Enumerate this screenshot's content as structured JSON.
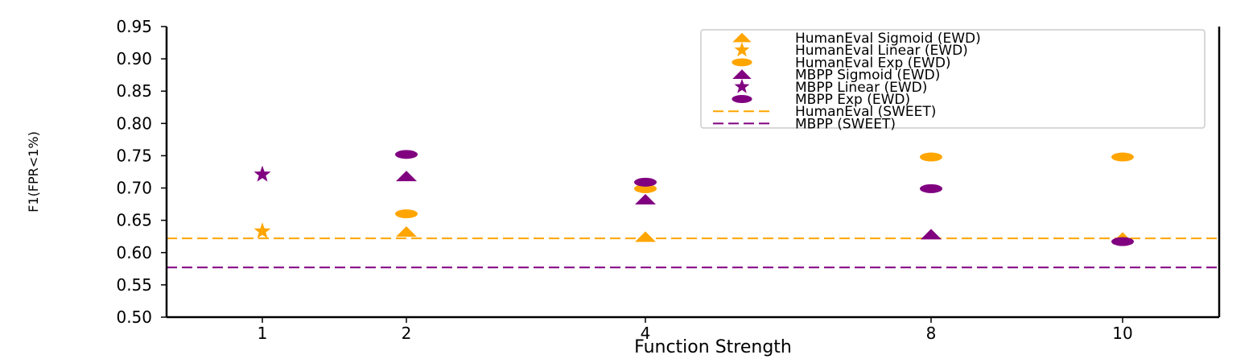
{
  "chart_data": {
    "type": "scatter",
    "xlabel": "Function Strength",
    "ylabel": "F1(FPR<1%)",
    "categories": [
      "1",
      "2",
      "4",
      "8",
      "10"
    ],
    "ylim": [
      0.5,
      0.95
    ],
    "yticks": [
      "0.50",
      "0.55",
      "0.60",
      "0.65",
      "0.70",
      "0.75",
      "0.80",
      "0.85",
      "0.90",
      "0.95"
    ],
    "grid": false,
    "legend_position": "top-right",
    "series": [
      {
        "name": "HumanEval Sigmoid (EWD)",
        "marker": "triangle",
        "color": "#FFA500",
        "points": [
          {
            "x": "2",
            "y": 0.632
          },
          {
            "x": "4",
            "y": 0.624
          },
          {
            "x": "10",
            "y": 0.623
          }
        ]
      },
      {
        "name": "HumanEval Linear (EWD)",
        "marker": "star",
        "color": "#FFA500",
        "points": [
          {
            "x": "1",
            "y": 0.633
          }
        ]
      },
      {
        "name": "HumanEval Exp (EWD)",
        "marker": "ellipse",
        "color": "#FFA500",
        "points": [
          {
            "x": "2",
            "y": 0.66
          },
          {
            "x": "4",
            "y": 0.699
          },
          {
            "x": "8",
            "y": 0.748
          },
          {
            "x": "10",
            "y": 0.748
          }
        ]
      },
      {
        "name": "MBPP Sigmoid (EWD)",
        "marker": "triangle",
        "color": "#800080",
        "points": [
          {
            "x": "2",
            "y": 0.718
          },
          {
            "x": "4",
            "y": 0.682
          },
          {
            "x": "8",
            "y": 0.628
          }
        ]
      },
      {
        "name": "MBPP Linear (EWD)",
        "marker": "star",
        "color": "#800080",
        "points": [
          {
            "x": "1",
            "y": 0.721
          }
        ]
      },
      {
        "name": "MBPP Exp (EWD)",
        "marker": "ellipse",
        "color": "#800080",
        "points": [
          {
            "x": "2",
            "y": 0.752
          },
          {
            "x": "4",
            "y": 0.709
          },
          {
            "x": "8",
            "y": 0.699
          },
          {
            "x": "10",
            "y": 0.617
          }
        ]
      }
    ],
    "reference_lines": [
      {
        "name": "HumanEval (SWEET)",
        "y": 0.622,
        "color": "#FFA500",
        "style": "dashed"
      },
      {
        "name": "MBPP (SWEET)",
        "y": 0.577,
        "color": "#800080",
        "style": "dashed"
      }
    ]
  }
}
